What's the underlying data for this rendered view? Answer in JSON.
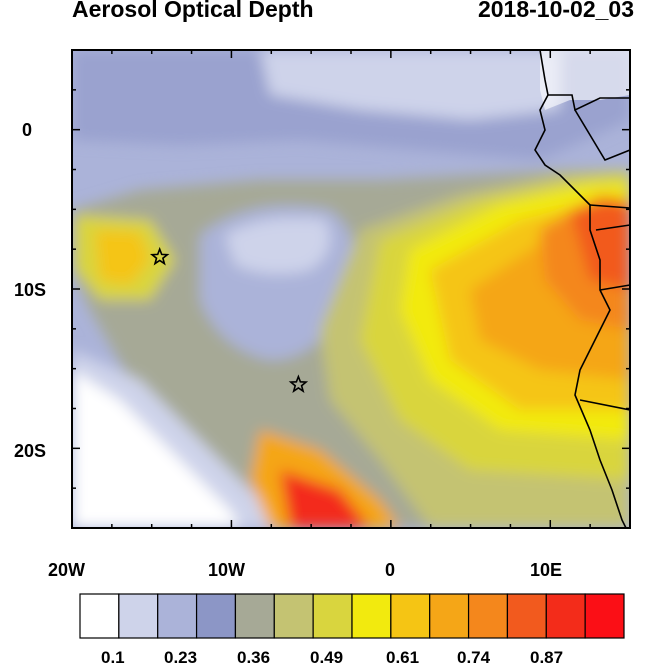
{
  "title": "Aerosol Optical Depth",
  "timestamp": "2018-10-02_03",
  "axes": {
    "y_labels": [
      "0",
      "10S",
      "20S"
    ],
    "x_labels": [
      "20W",
      "10W",
      "0",
      "10E"
    ]
  },
  "markers": [
    {
      "lon": -14.5,
      "lat": -8.0,
      "symbol": "star"
    },
    {
      "lon": -5.8,
      "lat": -16.0,
      "symbol": "star"
    }
  ],
  "colorbar": {
    "colors": [
      "#ffffff",
      "#ced3ea",
      "#abb3d9",
      "#8c96c6",
      "#a6a996",
      "#c4c372",
      "#d9d53e",
      "#f2ea0e",
      "#f5c514",
      "#f5a617",
      "#f4871c",
      "#f25a1e",
      "#f32c1a",
      "#fb0f16"
    ],
    "labels": [
      "0.1",
      "0.23",
      "0.36",
      "0.49",
      "0.61",
      "0.74",
      "0.87"
    ]
  }
}
